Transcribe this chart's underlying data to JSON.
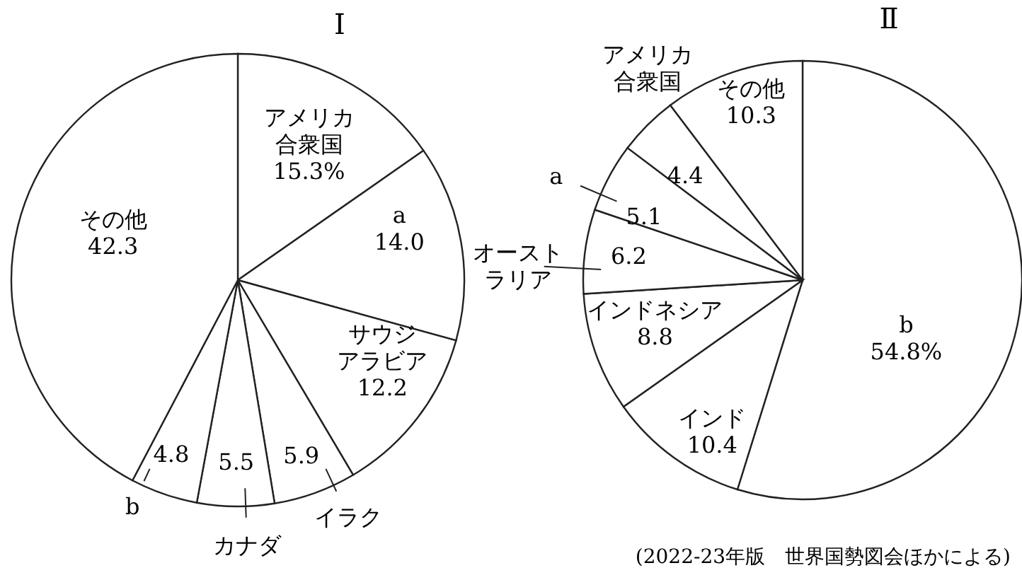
{
  "chart_data": [
    {
      "type": "pie",
      "title": "Ⅰ",
      "categories": [
        "アメリカ合衆国",
        "a",
        "サウジアラビア",
        "イラク",
        "カナダ",
        "b",
        "その他"
      ],
      "values": [
        15.3,
        14.0,
        12.2,
        5.9,
        5.5,
        4.8,
        42.3
      ],
      "value_labels": [
        "15.3%",
        "14.0",
        "12.2",
        "5.9",
        "5.5",
        "4.8",
        "42.3"
      ],
      "colors": [
        "#ffffff",
        "#ffffff",
        "#ffffff",
        "#ffffff",
        "#ffffff",
        "#ffffff",
        "#ffffff"
      ],
      "legend": false
    },
    {
      "type": "pie",
      "title": "Ⅱ",
      "categories": [
        "b",
        "インド",
        "インドネシア",
        "オーストラリア",
        "a",
        "アメリカ合衆国",
        "その他"
      ],
      "values": [
        54.8,
        10.4,
        8.8,
        6.2,
        5.1,
        4.4,
        10.3
      ],
      "value_labels": [
        "54.8%",
        "10.4",
        "8.8",
        "6.2",
        "5.1",
        "4.4",
        "10.3"
      ],
      "colors": [
        "#ffffff",
        "#ffffff",
        "#ffffff",
        "#ffffff",
        "#ffffff",
        "#ffffff",
        "#ffffff"
      ],
      "legend": false,
      "annotations": [
        "(2022-23年版　世界国勢図会ほかによる)"
      ]
    }
  ]
}
